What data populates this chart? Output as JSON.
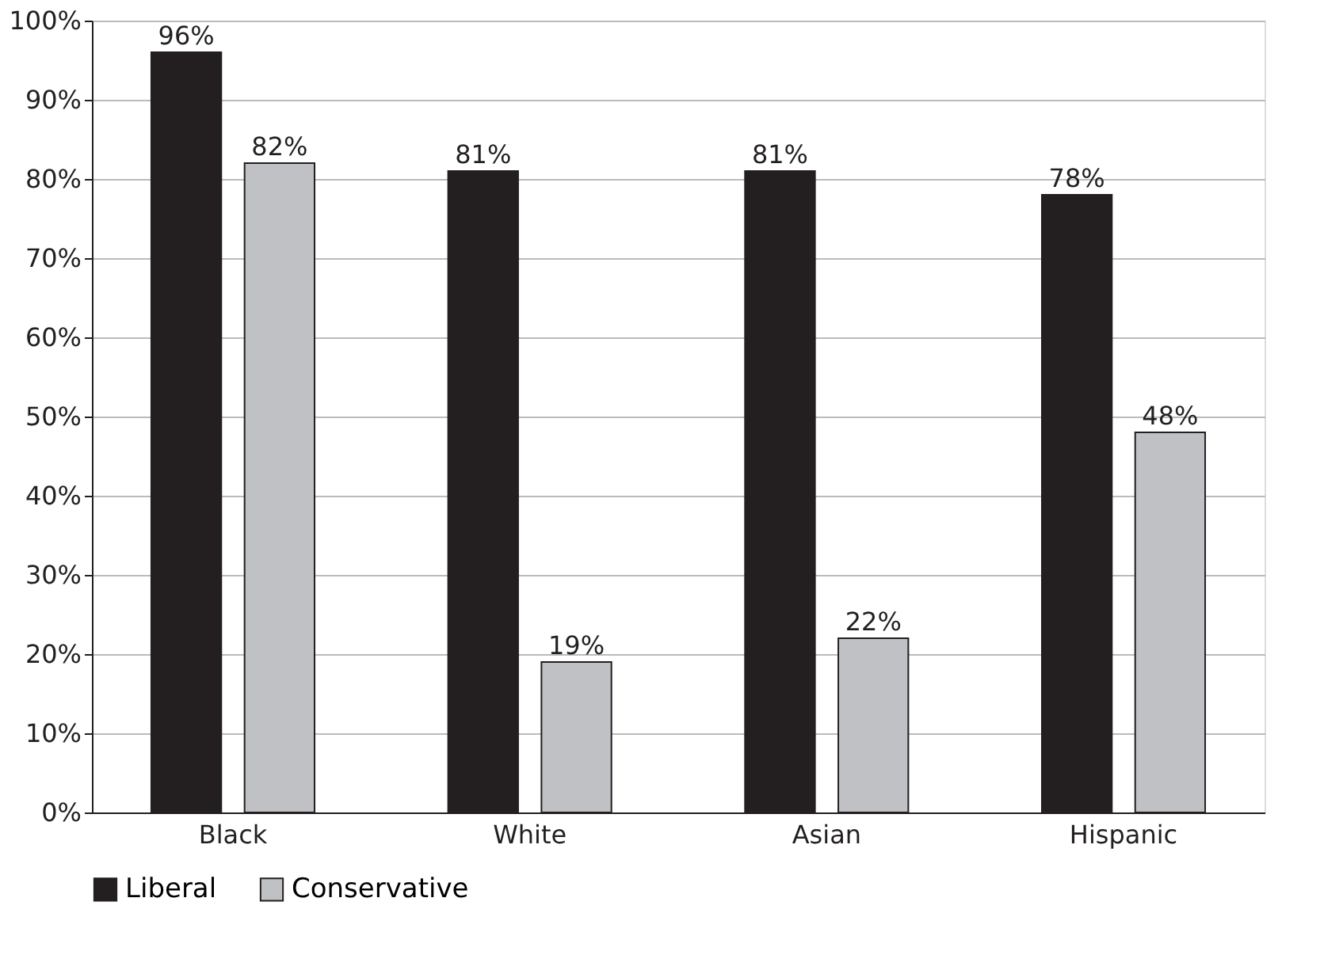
{
  "chart_data": {
    "type": "bar",
    "categories": [
      "Black",
      "White",
      "Asian",
      "Hispanic"
    ],
    "series": [
      {
        "name": "Liberal",
        "color": "#231f20",
        "values": [
          96,
          81,
          81,
          78
        ],
        "value_labels": [
          "96%",
          "81%",
          "81%",
          "78%"
        ]
      },
      {
        "name": "Conservative",
        "color": "#c0c1c4",
        "values": [
          82,
          19,
          22,
          48
        ],
        "value_labels": [
          "82%",
          "19%",
          "22%",
          "48%"
        ]
      }
    ],
    "ylim": [
      0,
      100
    ],
    "yticks": [
      {
        "value": 0,
        "label": "0%"
      },
      {
        "value": 10,
        "label": "10%"
      },
      {
        "value": 20,
        "label": "20%"
      },
      {
        "value": 30,
        "label": "30%"
      },
      {
        "value": 40,
        "label": "40%"
      },
      {
        "value": 50,
        "label": "50%"
      },
      {
        "value": 60,
        "label": "60%"
      },
      {
        "value": 70,
        "label": "70%"
      },
      {
        "value": 80,
        "label": "80%"
      },
      {
        "value": 90,
        "label": "90%"
      },
      {
        "value": 100,
        "label": "100%"
      }
    ],
    "grid": "y",
    "legend": "bottom"
  }
}
